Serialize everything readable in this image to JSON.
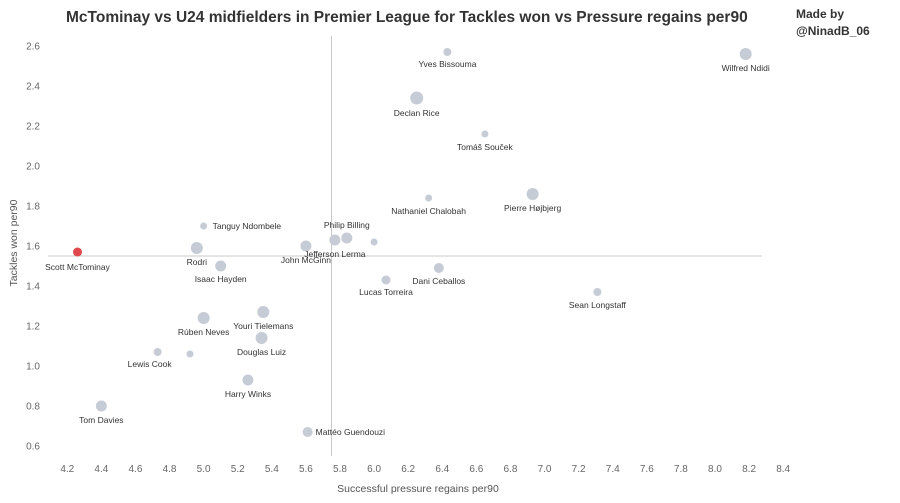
{
  "title": "McTominay vs U24 midfielders in Premier League for Tackles won vs Pressure regains per90",
  "credit": {
    "line1": "Made by",
    "line2": "@NinadB_06"
  },
  "chart_data": {
    "type": "scatter",
    "title": "McTominay vs U24 midfielders in Premier League for Tackles won vs Pressure regains per90",
    "xlabel": "Successful pressure regains per90",
    "ylabel": "Tackles won per90",
    "xlim": [
      4.04,
      8.44
    ],
    "ylim": [
      0.55,
      2.68
    ],
    "xticks": [
      "4.2",
      "4.4",
      "4.6",
      "4.8",
      "5.0",
      "5.2",
      "5.4",
      "5.6",
      "5.8",
      "6.0",
      "6.2",
      "6.4",
      "6.6",
      "6.8",
      "7.0",
      "7.2",
      "7.4",
      "7.6",
      "7.8",
      "8.0",
      "8.2",
      "8.4"
    ],
    "yticks": [
      "0.6",
      "0.8",
      "1.0",
      "1.2",
      "1.4",
      "1.6",
      "1.8",
      "2.0",
      "2.2",
      "2.4",
      "2.6"
    ],
    "reference_lines": {
      "x": 5.75,
      "y": 1.55
    },
    "grid": false,
    "colors": {
      "highlight": "#e0484e",
      "default": "#c5ccd6",
      "reference": "#c8c8c8"
    },
    "points": [
      {
        "label": "Scott McTominay",
        "x": 4.26,
        "y": 1.57,
        "size": 4.5,
        "highlight": true
      },
      {
        "label": "Yves Bissouma",
        "x": 6.43,
        "y": 2.57,
        "size": 4
      },
      {
        "label": "Wilfred Ndidi",
        "x": 8.18,
        "y": 2.56,
        "size": 6
      },
      {
        "label": "Declan Rice",
        "x": 6.25,
        "y": 2.34,
        "size": 6.5
      },
      {
        "label": "Tomáš Souček",
        "x": 6.65,
        "y": 2.16,
        "size": 3.5
      },
      {
        "label": "Nathaniel Chalobah",
        "x": 6.32,
        "y": 1.84,
        "size": 3.5
      },
      {
        "label": "Pierre Højbjerg",
        "x": 6.93,
        "y": 1.86,
        "size": 6
      },
      {
        "label": "Tanguy Ndombele",
        "x": 5.0,
        "y": 1.7,
        "size": 3.5
      },
      {
        "label": "Philip Billing",
        "x": 5.84,
        "y": 1.64,
        "size": 5.5
      },
      {
        "label": "Jefferson Lerma",
        "x": 5.77,
        "y": 1.63,
        "size": 5.5
      },
      {
        "label": "",
        "x": 6.0,
        "y": 1.62,
        "size": 3.5
      },
      {
        "label": "Rodri",
        "x": 4.96,
        "y": 1.59,
        "size": 6
      },
      {
        "label": "John McGinn",
        "x": 5.6,
        "y": 1.6,
        "size": 5.5
      },
      {
        "label": "Isaac Hayden",
        "x": 5.1,
        "y": 1.5,
        "size": 5.5
      },
      {
        "label": "Dani Ceballos",
        "x": 6.38,
        "y": 1.49,
        "size": 5
      },
      {
        "label": "Lucas Torreira",
        "x": 6.07,
        "y": 1.43,
        "size": 4.5
      },
      {
        "label": "Sean Longstaff",
        "x": 7.31,
        "y": 1.37,
        "size": 4
      },
      {
        "label": "Youri Tielemans",
        "x": 5.35,
        "y": 1.27,
        "size": 6
      },
      {
        "label": "Rúben Neves",
        "x": 5.0,
        "y": 1.24,
        "size": 6
      },
      {
        "label": "Douglas Luiz",
        "x": 5.34,
        "y": 1.14,
        "size": 6
      },
      {
        "label": "Lewis Cook",
        "x": 4.73,
        "y": 1.07,
        "size": 4
      },
      {
        "label": "",
        "x": 4.92,
        "y": 1.06,
        "size": 3.5
      },
      {
        "label": "Harry Winks",
        "x": 5.26,
        "y": 0.93,
        "size": 5.5
      },
      {
        "label": "Tom Davies",
        "x": 4.4,
        "y": 0.8,
        "size": 5.5
      },
      {
        "label": "Mattéo Guendouzi",
        "x": 5.61,
        "y": 0.67,
        "size": 5
      }
    ]
  }
}
